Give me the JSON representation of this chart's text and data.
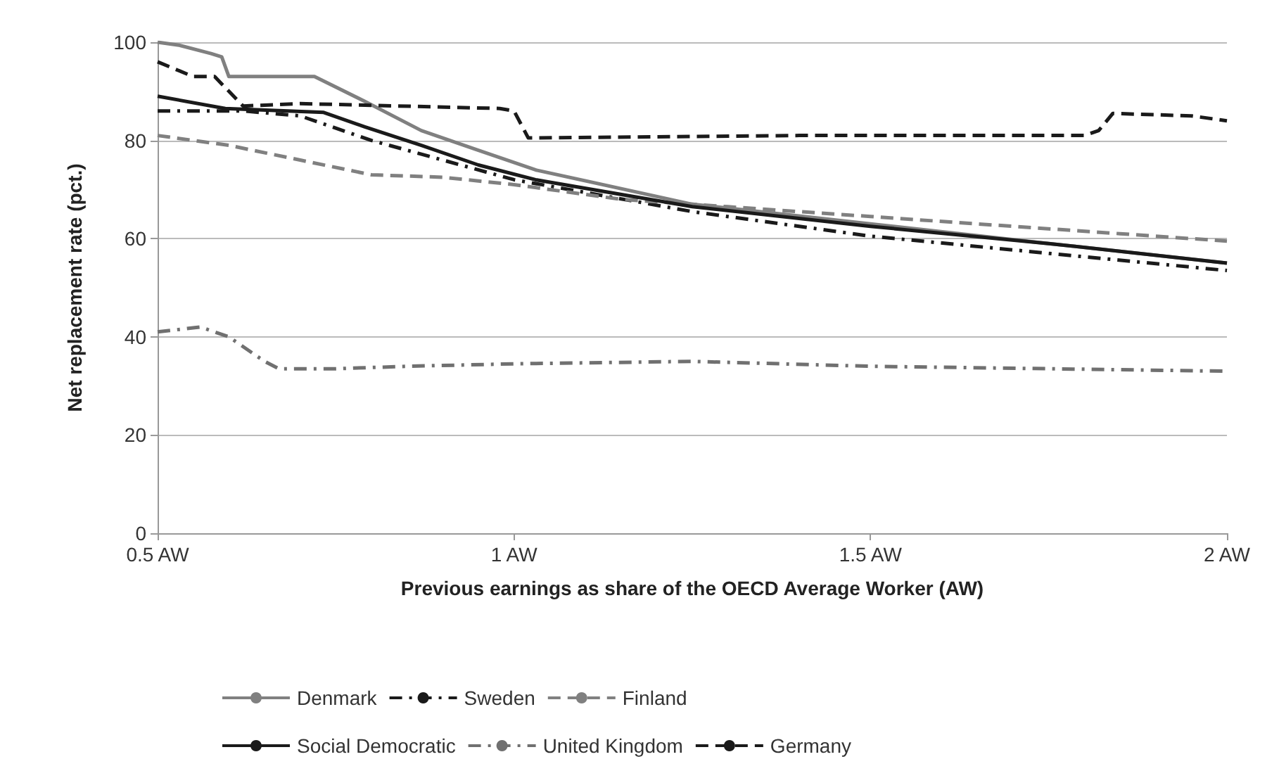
{
  "chart_data": {
    "type": "line",
    "xlabel": "Previous earnings as share of the OECD Average Worker (AW)",
    "ylabel": "Net replacement rate (pct.)",
    "xlim": [
      0.5,
      2
    ],
    "xticks": [
      {
        "value": 0.5,
        "label": "0.5 AW"
      },
      {
        "value": 1,
        "label": "1 AW"
      },
      {
        "value": 1.5,
        "label": "1.5 AW"
      },
      {
        "value": 2,
        "label": "2 AW"
      }
    ],
    "ylim": [
      0,
      100
    ],
    "yticks": [
      0,
      20,
      40,
      60,
      80,
      100
    ],
    "grid": "y",
    "legend": "bottom",
    "marker": "none",
    "series": [
      {
        "name": "Denmark",
        "color": "#808080",
        "line_style": "solid",
        "x": [
          0.5,
          0.53,
          0.575,
          0.59,
          0.6,
          0.72,
          0.79,
          0.87,
          0.95,
          1.03,
          1.25,
          1.5,
          1.75,
          2.0
        ],
        "values": [
          100,
          99.4,
          97.7,
          97,
          93,
          93,
          88,
          82,
          78,
          74,
          67,
          63,
          59,
          55
        ]
      },
      {
        "name": "Sweden",
        "color": "#1a1a1a",
        "line_style": "dashdot",
        "x": [
          0.5,
          0.62,
          0.7,
          0.8,
          0.9,
          1.0,
          1.25,
          1.5,
          1.75,
          2.0
        ],
        "values": [
          86,
          86,
          85,
          80,
          76,
          72,
          65.5,
          60.5,
          57,
          53.5
        ]
      },
      {
        "name": "Finland",
        "color": "#808080",
        "line_style": "dashed",
        "x": [
          0.5,
          0.6,
          0.7,
          0.8,
          0.9,
          1.0,
          1.15,
          1.3,
          1.5,
          1.7,
          1.85,
          2.0
        ],
        "values": [
          81,
          79,
          76,
          73,
          72.5,
          71,
          68,
          66.5,
          64.5,
          62.5,
          61,
          59.5
        ]
      },
      {
        "name": "Social Democratic",
        "color": "#1a1a1a",
        "line_style": "solid",
        "x": [
          0.5,
          0.595,
          0.733,
          0.79,
          0.87,
          0.95,
          1.03,
          1.25,
          1.5,
          1.75,
          2.0
        ],
        "values": [
          89,
          86.5,
          85.7,
          82.8,
          79,
          75,
          72,
          66.5,
          62.5,
          59,
          55
        ]
      },
      {
        "name": "United Kingdom",
        "color": "#707070",
        "line_style": "dashdot",
        "x": [
          0.5,
          0.56,
          0.6,
          0.65,
          0.67,
          0.75,
          0.85,
          1.0,
          1.25,
          1.5,
          1.75,
          2.0
        ],
        "values": [
          41,
          42,
          40,
          35,
          33.5,
          33.5,
          34,
          34.5,
          35,
          34,
          33.5,
          33
        ]
      },
      {
        "name": "Germany",
        "color": "#1a1a1a",
        "line_style": "dashed",
        "x": [
          0.5,
          0.55,
          0.58,
          0.62,
          0.7,
          0.98,
          1.0,
          1.02,
          1.4,
          1.8,
          1.82,
          1.84,
          1.95,
          2.0
        ],
        "values": [
          96,
          93,
          93,
          87,
          87.5,
          86.5,
          86,
          80.5,
          81,
          81,
          82,
          85.5,
          85,
          84
        ]
      }
    ]
  }
}
